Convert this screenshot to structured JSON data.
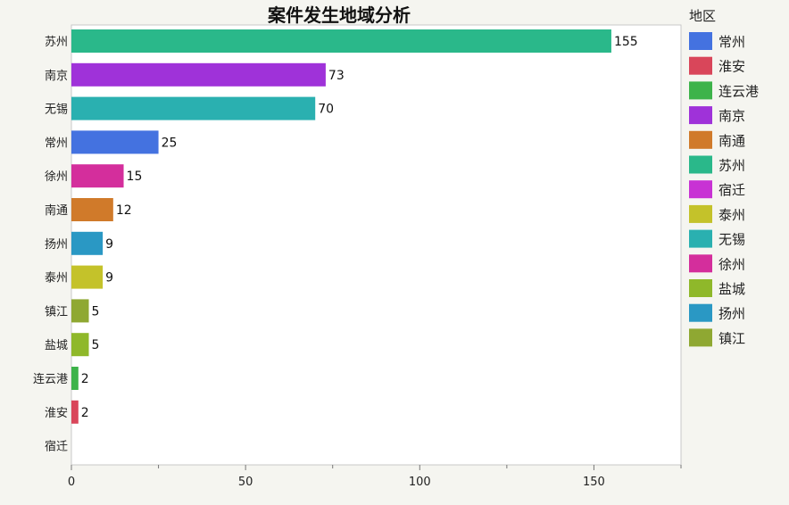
{
  "chart_data": {
    "type": "bar",
    "orientation": "horizontal",
    "title": "案件发生地域分析",
    "categories": [
      "苏州",
      "南京",
      "无锡",
      "常州",
      "徐州",
      "南通",
      "扬州",
      "泰州",
      "镇江",
      "盐城",
      "连云港",
      "淮安",
      "宿迁"
    ],
    "values": [
      155,
      73,
      70,
      25,
      15,
      12,
      9,
      9,
      5,
      5,
      2,
      2,
      0
    ],
    "value_labels": [
      "155",
      "73",
      "70",
      "25",
      "15",
      "12",
      "9",
      "9",
      "5",
      "5",
      "2",
      "2",
      ""
    ],
    "xlim": [
      0,
      175
    ],
    "xticks": [
      0,
      50,
      100,
      150
    ],
    "xlabel": "",
    "ylabel": "",
    "grid": false,
    "legend": {
      "title": "地区",
      "position": "right",
      "entries": [
        {
          "name": "常州",
          "color": "#4472e0"
        },
        {
          "name": "淮安",
          "color": "#d9465a"
        },
        {
          "name": "连云港",
          "color": "#3db34a"
        },
        {
          "name": "南京",
          "color": "#9f32d9"
        },
        {
          "name": "南通",
          "color": "#d07a2a"
        },
        {
          "name": "苏州",
          "color": "#2ab88a"
        },
        {
          "name": "宿迁",
          "color": "#c832d4"
        },
        {
          "name": "泰州",
          "color": "#c4c22a"
        },
        {
          "name": "无锡",
          "color": "#2ab0b0"
        },
        {
          "name": "徐州",
          "color": "#d42e9c"
        },
        {
          "name": "盐城",
          "color": "#8fb82a"
        },
        {
          "name": "扬州",
          "color": "#2a98c4"
        },
        {
          "name": "镇江",
          "color": "#8fa832"
        }
      ]
    }
  }
}
